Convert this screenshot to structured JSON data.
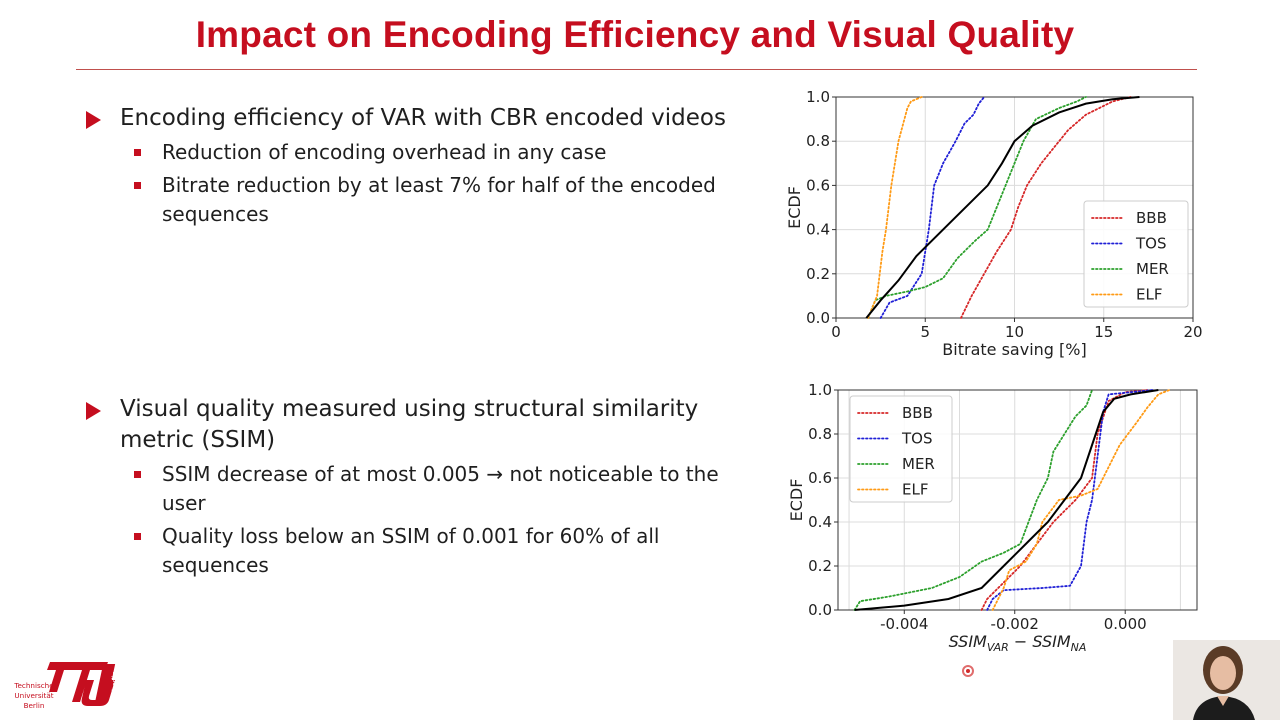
{
  "slide": {
    "title": "Impact on Encoding Efficiency and Visual Quality",
    "section1": {
      "heading": "Encoding efficiency of VAR with CBR encoded videos",
      "points": [
        "Reduction of encoding overhead in any case",
        "Bitrate reduction by at least 7% for half of the encoded sequences"
      ]
    },
    "section2": {
      "heading": "Visual quality measured using structural similarity metric (SSIM)",
      "points": [
        "SSIM decrease of at most 0.005 → not noticeable to the user",
        "Quality loss below an SSIM of 0.001 for 60% of all sequences"
      ]
    }
  },
  "logo": {
    "line1": "Technische",
    "line2": "Universität",
    "line3": "Berlin",
    "side": "berlin",
    "color": "#c50e1f"
  },
  "chart_data": [
    {
      "type": "line",
      "title": "",
      "xlabel": "Bitrate saving [%]",
      "ylabel": "ECDF",
      "xlim": [
        0,
        20
      ],
      "ylim": [
        0,
        1
      ],
      "xticks": [
        "0",
        "5",
        "10",
        "15",
        "20"
      ],
      "yticks": [
        "0.0",
        "0.2",
        "0.4",
        "0.6",
        "0.8",
        "1.0"
      ],
      "grid": true,
      "legend_position": "center-right",
      "legend": [
        "BBB",
        "TOS",
        "MER",
        "ELF"
      ],
      "series": [
        {
          "name": "BBB",
          "style": "dotted",
          "color": "#d62728",
          "points": [
            [
              7.0,
              0.0
            ],
            [
              7.3,
              0.05
            ],
            [
              7.6,
              0.1
            ],
            [
              8.3,
              0.2
            ],
            [
              9.0,
              0.3
            ],
            [
              9.8,
              0.4
            ],
            [
              10.2,
              0.5
            ],
            [
              10.7,
              0.6
            ],
            [
              11.5,
              0.7
            ],
            [
              12.0,
              0.75
            ],
            [
              13.0,
              0.85
            ],
            [
              14.0,
              0.92
            ],
            [
              15.5,
              0.98
            ],
            [
              16.5,
              1.0
            ]
          ]
        },
        {
          "name": "TOS",
          "style": "dotted",
          "color": "#1f1fd6",
          "points": [
            [
              2.5,
              0.0
            ],
            [
              3.0,
              0.07
            ],
            [
              4.0,
              0.1
            ],
            [
              4.8,
              0.2
            ],
            [
              5.2,
              0.4
            ],
            [
              5.5,
              0.6
            ],
            [
              6.0,
              0.7
            ],
            [
              6.7,
              0.8
            ],
            [
              7.2,
              0.88
            ],
            [
              7.7,
              0.92
            ],
            [
              8.0,
              0.97
            ],
            [
              8.3,
              1.0
            ]
          ]
        },
        {
          "name": "MER",
          "style": "dotted",
          "color": "#2ca02c",
          "points": [
            [
              1.8,
              0.0
            ],
            [
              2.2,
              0.08
            ],
            [
              2.8,
              0.1
            ],
            [
              4.0,
              0.12
            ],
            [
              5.0,
              0.14
            ],
            [
              6.0,
              0.18
            ],
            [
              6.8,
              0.27
            ],
            [
              7.8,
              0.35
            ],
            [
              8.5,
              0.4
            ],
            [
              9.0,
              0.5
            ],
            [
              9.5,
              0.6
            ],
            [
              10.0,
              0.7
            ],
            [
              10.5,
              0.8
            ],
            [
              11.2,
              0.9
            ],
            [
              12.5,
              0.95
            ],
            [
              13.5,
              0.98
            ],
            [
              14.0,
              1.0
            ]
          ]
        },
        {
          "name": "ELF",
          "style": "dotted",
          "color": "#ff9a14",
          "points": [
            [
              1.8,
              0.0
            ],
            [
              2.3,
              0.1
            ],
            [
              2.6,
              0.3
            ],
            [
              2.8,
              0.4
            ],
            [
              3.1,
              0.6
            ],
            [
              3.5,
              0.8
            ],
            [
              4.0,
              0.95
            ],
            [
              4.2,
              0.98
            ],
            [
              4.8,
              1.0
            ]
          ]
        },
        {
          "name": "",
          "style": "solid",
          "color": "#000000",
          "points": [
            [
              1.7,
              0.0
            ],
            [
              2.5,
              0.08
            ],
            [
              3.5,
              0.17
            ],
            [
              4.5,
              0.28
            ],
            [
              6.0,
              0.4
            ],
            [
              7.5,
              0.52
            ],
            [
              8.5,
              0.6
            ],
            [
              9.3,
              0.7
            ],
            [
              10.0,
              0.8
            ],
            [
              11.0,
              0.87
            ],
            [
              12.5,
              0.93
            ],
            [
              14.0,
              0.97
            ],
            [
              15.5,
              0.99
            ],
            [
              17.0,
              1.0
            ]
          ]
        }
      ]
    },
    {
      "type": "line",
      "title": "",
      "xlabel": "SSIM",
      "xlabel_sub1": "VAR",
      "xlabel_mid": " − SSIM",
      "xlabel_sub2": "NA",
      "ylabel": "ECDF",
      "xlim": [
        -0.0052,
        0.0013
      ],
      "ylim": [
        0,
        1
      ],
      "xticks": [
        {
          "value": -0.004,
          "label": "-0.004"
        },
        {
          "value": -0.002,
          "label": "-0.002"
        },
        {
          "value": 0.0,
          "label": "0.000"
        }
      ],
      "yticks": [
        "0.0",
        "0.2",
        "0.4",
        "0.6",
        "0.8",
        "1.0"
      ],
      "grid": true,
      "legend_position": "upper-left",
      "legend": [
        "BBB",
        "TOS",
        "MER",
        "ELF"
      ],
      "series": [
        {
          "name": "BBB",
          "style": "dotted",
          "color": "#d62728",
          "points": [
            [
              -0.0026,
              0.0
            ],
            [
              -0.0025,
              0.05
            ],
            [
              -0.0023,
              0.1
            ],
            [
              -0.0019,
              0.2
            ],
            [
              -0.0016,
              0.3
            ],
            [
              -0.0013,
              0.4
            ],
            [
              -0.0009,
              0.5
            ],
            [
              -0.0006,
              0.6
            ],
            [
              -0.0005,
              0.8
            ],
            [
              -0.0003,
              0.95
            ],
            [
              0.0,
              0.99
            ],
            [
              0.0004,
              1.0
            ]
          ]
        },
        {
          "name": "TOS",
          "style": "dotted",
          "color": "#1f1fd6",
          "points": [
            [
              -0.0025,
              0.0
            ],
            [
              -0.0024,
              0.05
            ],
            [
              -0.0022,
              0.09
            ],
            [
              -0.0015,
              0.1
            ],
            [
              -0.001,
              0.11
            ],
            [
              -0.0008,
              0.2
            ],
            [
              -0.0007,
              0.4
            ],
            [
              -0.0006,
              0.5
            ],
            [
              -0.0005,
              0.7
            ],
            [
              -0.0004,
              0.9
            ],
            [
              -0.0003,
              0.98
            ],
            [
              0.0005,
              1.0
            ]
          ]
        },
        {
          "name": "MER",
          "style": "dotted",
          "color": "#2ca02c",
          "points": [
            [
              -0.0049,
              0.0
            ],
            [
              -0.0048,
              0.04
            ],
            [
              -0.0043,
              0.06
            ],
            [
              -0.0035,
              0.1
            ],
            [
              -0.003,
              0.15
            ],
            [
              -0.0026,
              0.22
            ],
            [
              -0.0022,
              0.26
            ],
            [
              -0.0019,
              0.3
            ],
            [
              -0.0016,
              0.5
            ],
            [
              -0.0014,
              0.6
            ],
            [
              -0.0013,
              0.72
            ],
            [
              -0.0011,
              0.8
            ],
            [
              -0.0009,
              0.88
            ],
            [
              -0.0007,
              0.93
            ],
            [
              -0.0006,
              1.0
            ]
          ]
        },
        {
          "name": "ELF",
          "style": "dotted",
          "color": "#ff9a14",
          "points": [
            [
              -0.0024,
              0.0
            ],
            [
              -0.0022,
              0.1
            ],
            [
              -0.0021,
              0.18
            ],
            [
              -0.0018,
              0.22
            ],
            [
              -0.0016,
              0.3
            ],
            [
              -0.0015,
              0.4
            ],
            [
              -0.0012,
              0.5
            ],
            [
              -0.0008,
              0.52
            ],
            [
              -0.0005,
              0.55
            ],
            [
              -0.0004,
              0.6
            ],
            [
              -0.0001,
              0.75
            ],
            [
              0.0002,
              0.85
            ],
            [
              0.0004,
              0.92
            ],
            [
              0.0006,
              0.98
            ],
            [
              0.0008,
              1.0
            ]
          ]
        },
        {
          "name": "",
          "style": "solid",
          "color": "#000000",
          "points": [
            [
              -0.0049,
              0.0
            ],
            [
              -0.004,
              0.02
            ],
            [
              -0.0032,
              0.05
            ],
            [
              -0.0026,
              0.1
            ],
            [
              -0.0022,
              0.2
            ],
            [
              -0.0018,
              0.3
            ],
            [
              -0.0014,
              0.4
            ],
            [
              -0.0011,
              0.5
            ],
            [
              -0.0008,
              0.6
            ],
            [
              -0.0006,
              0.75
            ],
            [
              -0.0004,
              0.9
            ],
            [
              -0.0002,
              0.96
            ],
            [
              0.0001,
              0.98
            ],
            [
              0.0006,
              1.0
            ]
          ]
        }
      ]
    }
  ]
}
